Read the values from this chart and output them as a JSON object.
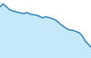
{
  "x": [
    0,
    1,
    2,
    3,
    4,
    5,
    6,
    7,
    8,
    9,
    10,
    11,
    12,
    13,
    14,
    15,
    16,
    17,
    18,
    19,
    20,
    21,
    22,
    23,
    24,
    25,
    26,
    27,
    28,
    29,
    30
  ],
  "y": [
    92,
    98,
    93,
    88,
    85,
    84,
    82,
    81,
    80,
    82,
    79,
    78,
    77,
    75,
    72,
    74,
    73,
    71,
    69,
    65,
    60,
    56,
    52,
    50,
    49,
    47,
    45,
    40,
    30,
    24,
    18
  ],
  "line_color": "#1874b8",
  "fill_color": "#c5e8fa",
  "background_color": "#ffffff",
  "ylim_min": -2,
  "ylim_max": 105
}
